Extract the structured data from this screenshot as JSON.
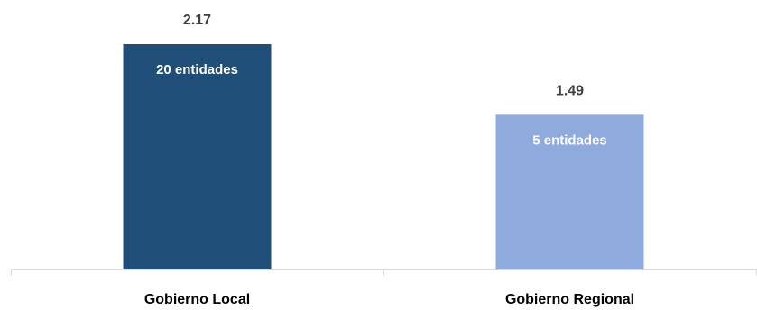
{
  "chart_data": {
    "type": "bar",
    "title": "",
    "xlabel": "",
    "ylabel": "",
    "categories": [
      "Gobierno Local",
      "Gobierno Regional"
    ],
    "values": [
      2.17,
      1.49
    ],
    "value_labels": [
      "2.17",
      "1.49"
    ],
    "inner_labels": [
      "20 entidades",
      "5 entidades"
    ],
    "colors": [
      "#1f4e79",
      "#8faadc"
    ],
    "ylim": [
      0,
      2.17
    ],
    "grid": false,
    "legend": "none"
  }
}
